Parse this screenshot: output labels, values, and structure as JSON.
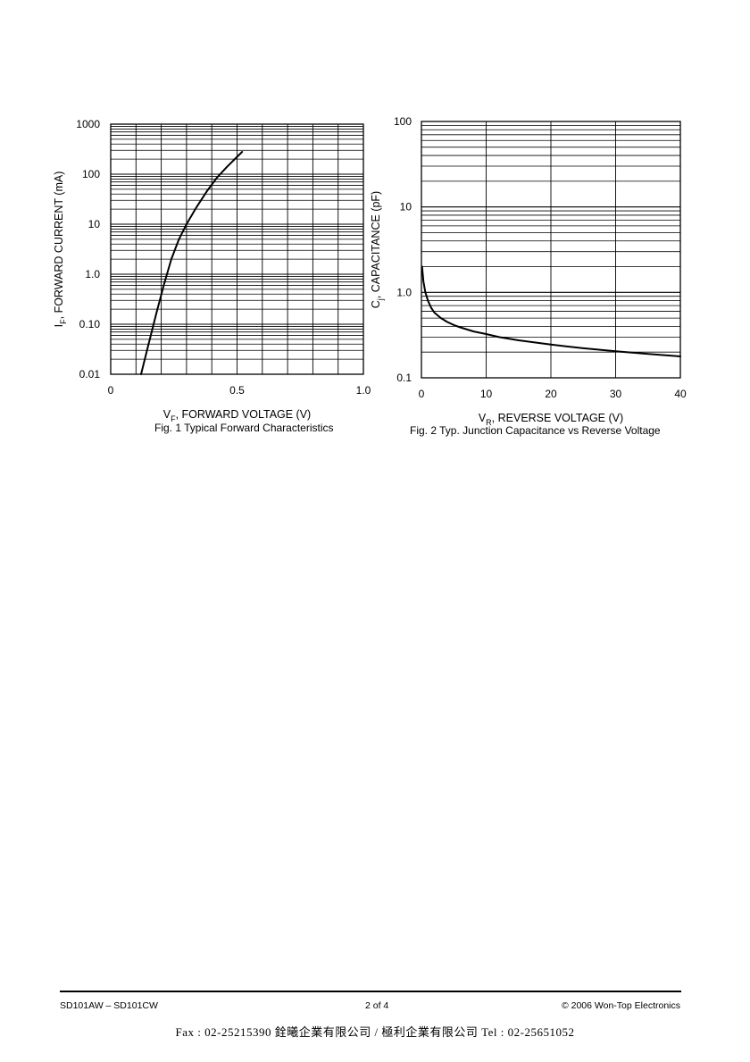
{
  "chart_data": [
    {
      "type": "line",
      "caption": "Fig. 1  Typical Forward Characteristics",
      "xlabel_prefix": "V",
      "xlabel_sub": "F",
      "xlabel_rest": ", FORWARD VOLTAGE (V)",
      "ylabel_prefix": "I",
      "ylabel_sub": "F",
      "ylabel_rest": ", FORWARD CURRENT (mA)",
      "x_scale": "linear",
      "y_scale": "log",
      "xlim": [
        0,
        1.0
      ],
      "ylim": [
        0.01,
        1000
      ],
      "x_ticks": [
        0,
        0.5,
        1.0
      ],
      "x_tick_labels": [
        "0",
        "0.5",
        "1.0"
      ],
      "y_ticks": [
        0.01,
        0.1,
        1,
        10,
        100,
        1000
      ],
      "y_tick_labels": [
        "0.01",
        "0.10",
        "1.0",
        "10",
        "100",
        "1000"
      ],
      "grid": true,
      "series": [
        {
          "x": [
            0.12,
            0.15,
            0.18,
            0.21,
            0.24,
            0.27,
            0.3,
            0.34,
            0.38,
            0.42,
            0.46,
            0.52
          ],
          "y": [
            0.01,
            0.04,
            0.16,
            0.6,
            2.0,
            5.0,
            10,
            22,
            45,
            85,
            140,
            280
          ]
        }
      ]
    },
    {
      "type": "line",
      "caption": "Fig. 2  Typ. Junction Capacitance vs Reverse Voltage",
      "xlabel_prefix": "V",
      "xlabel_sub": "R",
      "xlabel_rest": ", REVERSE VOLTAGE (V)",
      "ylabel_prefix": "C",
      "ylabel_sub": "j",
      "ylabel_rest": ", CAPACITANCE (pF)",
      "x_scale": "linear",
      "y_scale": "log",
      "xlim": [
        0,
        40
      ],
      "ylim": [
        0.1,
        100
      ],
      "x_ticks": [
        0,
        10,
        20,
        30,
        40
      ],
      "x_tick_labels": [
        "0",
        "10",
        "20",
        "30",
        "40"
      ],
      "y_ticks": [
        0.1,
        1,
        10,
        100
      ],
      "y_tick_labels": [
        "0.1",
        "1.0",
        "10",
        "100"
      ],
      "grid": true,
      "series": [
        {
          "x": [
            0.1,
            0.3,
            0.6,
            1,
            1.5,
            2,
            3,
            4,
            5,
            6,
            8,
            10,
            12,
            15,
            20,
            25,
            30,
            35,
            40
          ],
          "y": [
            2.0,
            1.35,
            1.0,
            0.8,
            0.66,
            0.58,
            0.5,
            0.45,
            0.415,
            0.39,
            0.35,
            0.325,
            0.3,
            0.275,
            0.245,
            0.222,
            0.205,
            0.19,
            0.178
          ]
        }
      ]
    }
  ],
  "footer": {
    "left": "SD101AW – SD101CW",
    "center": "2 of 4",
    "right": "© 2006 Won-Top Electronics",
    "contact": "Fax : 02-25215390   銓曦企業有限公司 / 極利企業有限公司   Tel : 02-25651052"
  }
}
